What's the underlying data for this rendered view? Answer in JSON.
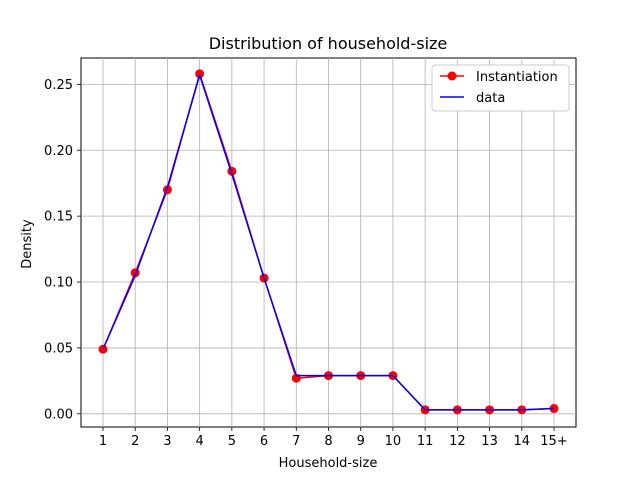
{
  "chart_data": {
    "type": "line",
    "title": "Distribution of household-size",
    "xlabel": "Household-size",
    "ylabel": "Density",
    "categories": [
      "1",
      "2",
      "3",
      "4",
      "5",
      "6",
      "7",
      "8",
      "9",
      "10",
      "11",
      "12",
      "13",
      "14",
      "15+"
    ],
    "ylim": [
      -0.01,
      0.27
    ],
    "yticks": [
      0.0,
      0.05,
      0.1,
      0.15,
      0.2,
      0.25
    ],
    "ytick_labels": [
      "0.00",
      "0.05",
      "0.10",
      "0.15",
      "0.20",
      "0.25"
    ],
    "grid": true,
    "legend_position": "top-right",
    "series": [
      {
        "name": "Instantiation",
        "color": "#ff0000",
        "marker": "circle",
        "values": [
          0.049,
          0.107,
          0.17,
          0.258,
          0.184,
          0.103,
          0.027,
          0.029,
          0.029,
          0.029,
          0.003,
          0.003,
          0.003,
          0.003,
          0.004
        ]
      },
      {
        "name": "data",
        "color": "#0000ff",
        "marker": "none",
        "values": [
          0.049,
          0.105,
          0.172,
          0.257,
          0.182,
          0.103,
          0.029,
          0.029,
          0.029,
          0.029,
          0.003,
          0.003,
          0.003,
          0.003,
          0.004
        ]
      }
    ]
  }
}
